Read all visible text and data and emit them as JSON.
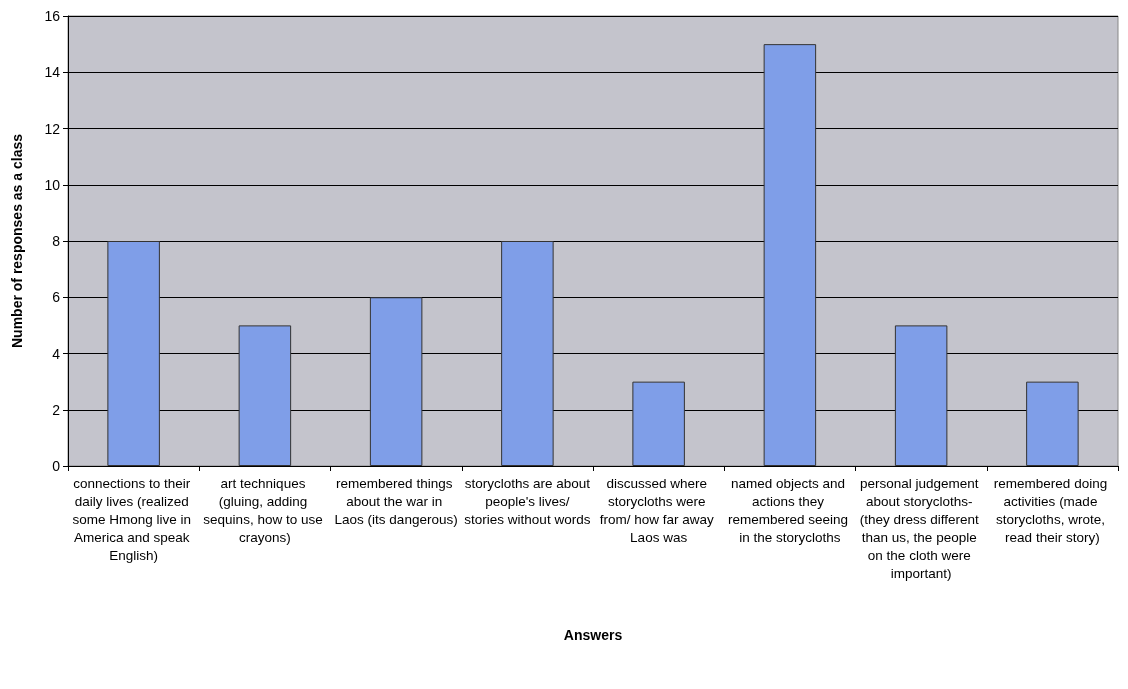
{
  "chart_data": {
    "type": "bar",
    "xlabel": "Answers",
    "ylabel": "Number of responses as a class",
    "categories": [
      "connections to their daily lives (realized some Hmong live in America and speak English)",
      "art techniques (gluing, adding sequins, how to use crayons)",
      "remembered things about the war in Laos (its dangerous)",
      "storycloths are about people's lives/ stories without words",
      "discussed where storycloths were from/ how far away Laos was",
      "named objects and actions they remembered seeing in the storycloths",
      "personal judgement about storycloths- (they dress different than us, the people on the cloth were important)",
      "remembered doing activities (made storycloths, wrote, read their story)"
    ],
    "values": [
      8,
      5,
      6,
      8,
      3,
      15,
      5,
      3
    ],
    "color": "#7f9ee8",
    "ylim": [
      0,
      16
    ],
    "yticks": [
      0,
      2,
      4,
      6,
      8,
      10,
      12,
      14,
      16
    ],
    "grid": "y"
  }
}
